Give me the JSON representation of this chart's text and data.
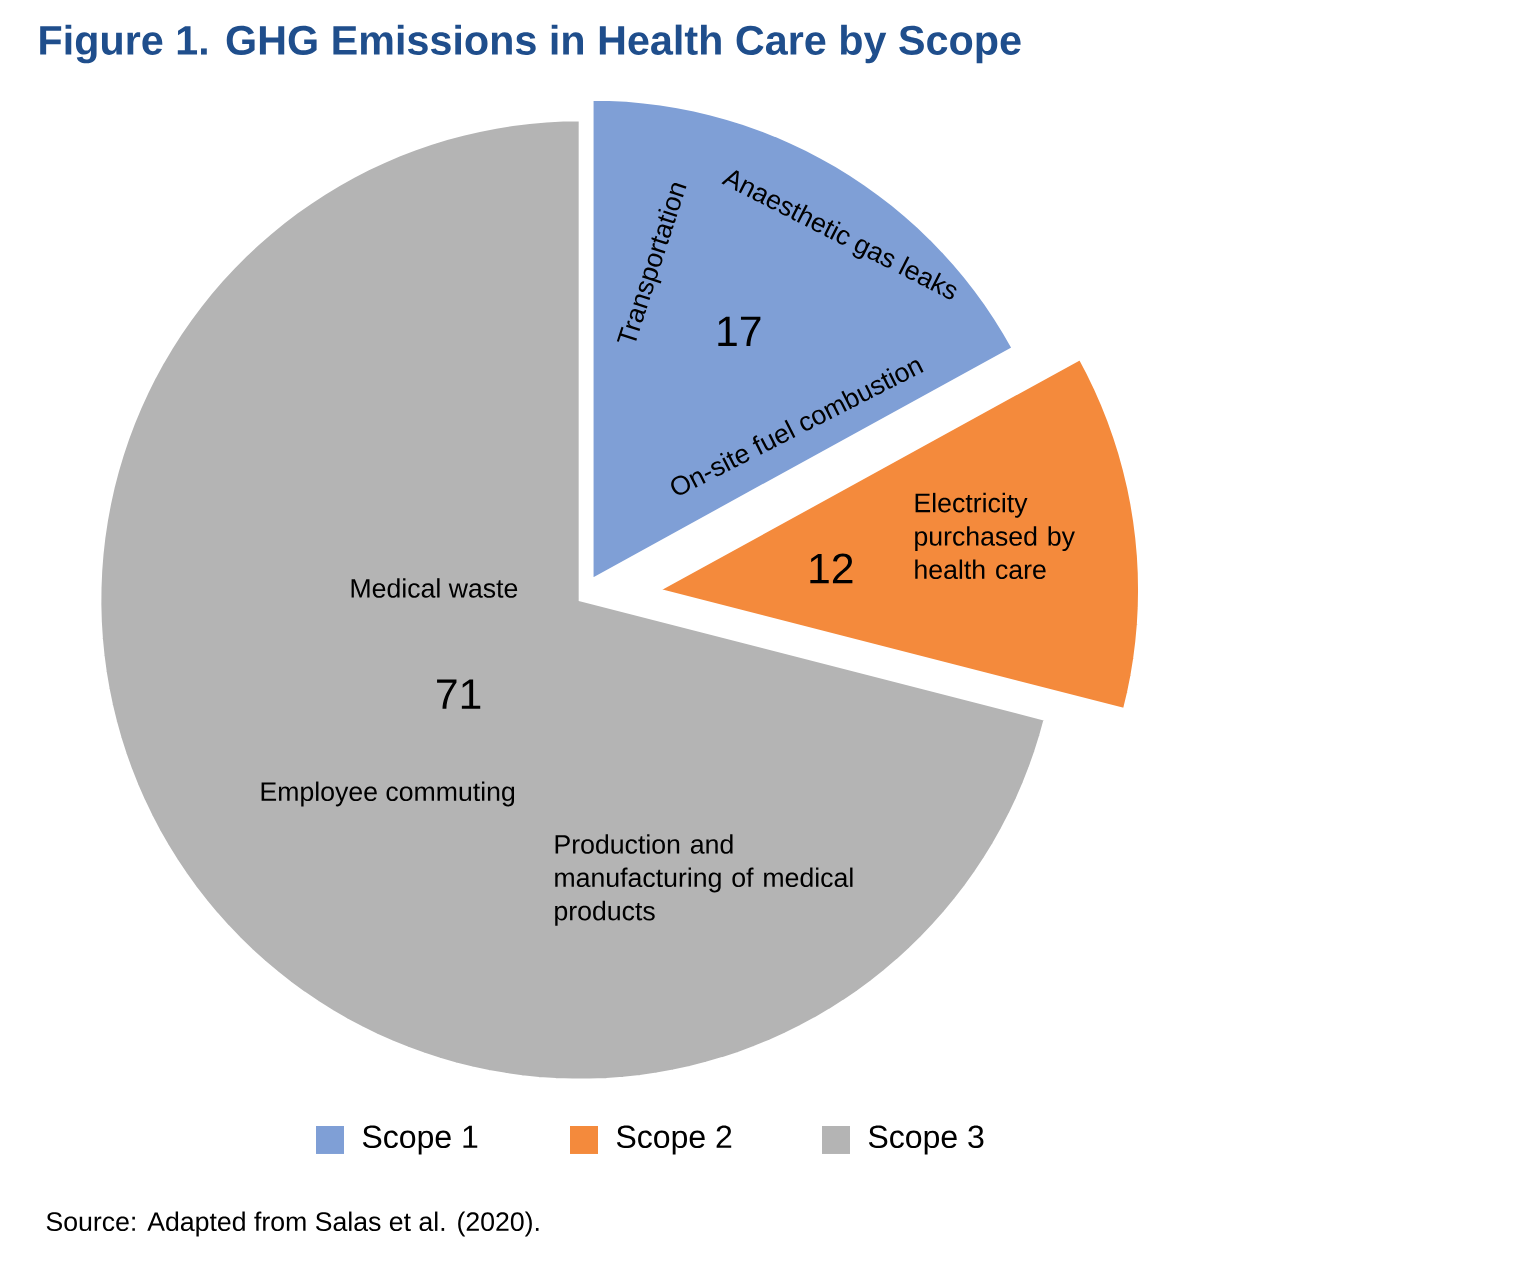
{
  "chart_data": {
    "type": "pie",
    "title": "Figure 1. GHG Emissions in Health Care by Scope",
    "categories": [
      "Scope 1",
      "Scope 2",
      "Scope 3"
    ],
    "values": [
      17,
      12,
      71
    ],
    "colors": [
      "#7f9fd6",
      "#f48a3c",
      "#b4b4b4"
    ],
    "data_labels": true,
    "legend": "bottom",
    "annotations": [
      "Anaesthetic gas leaks",
      "Transportation",
      "On-site fuel combustion",
      "Electricity purchased by health care",
      "Medical waste",
      "Employee commuting",
      "Production and manufacturing of medical products",
      "Source: Adapted from Salas et al. (2020)."
    ]
  }
}
